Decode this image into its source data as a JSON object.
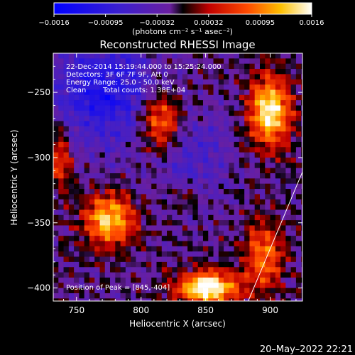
{
  "chart_data": {
    "type": "heatmap",
    "title": "Reconstructed RHESSI Image",
    "xlabel": "Heliocentric X (arcsec)",
    "ylabel": "Heliocentric Y (arcsec)",
    "xlim": [
      732,
      925
    ],
    "ylim": [
      -410,
      -220
    ],
    "x_ticks": [
      750,
      800,
      850,
      900
    ],
    "x_tick_labels": [
      "750",
      "800",
      "850",
      "900"
    ],
    "y_ticks": [
      -250,
      -300,
      -350,
      -400
    ],
    "y_tick_labels": [
      "−250",
      "−300",
      "−350",
      "−400"
    ],
    "colorbar": {
      "range": [
        -0.0016,
        0.0016
      ],
      "tick_labels": [
        "−0.0016",
        "−0.00095",
        "−0.00032",
        "0.00032",
        "0.00095",
        "0.0016"
      ],
      "units": "(photons cm⁻² s⁻¹ asec⁻²)"
    },
    "annotations": [
      "22-Dec-2014 15:19:44.000 to 15:25:24.000",
      "Detectors: 3F 6F 7F 9F, Att 0",
      "Energy Range: 25.0 - 50.0 keV",
      "Clean",
      "Total counts: 1.38E+04"
    ],
    "peak_label": "Position of Peak = [845,-404]",
    "peak": [
      845,
      -404
    ],
    "limb_line": [
      [
        883,
        -410
      ],
      [
        925,
        -311
      ]
    ],
    "sources": [
      {
        "x": 815,
        "y": -272,
        "sx": 11,
        "sy": 16,
        "amp": 1.0
      },
      {
        "x": 900,
        "y": -265,
        "sx": 11,
        "sy": 19,
        "amp": 1.4
      },
      {
        "x": 775,
        "y": -348,
        "sx": 14,
        "sy": 14,
        "amp": 1.2
      },
      {
        "x": 852,
        "y": -400,
        "sx": 16,
        "sy": 9,
        "amp": 1.6
      },
      {
        "x": 895,
        "y": -375,
        "sx": 10,
        "sy": 18,
        "amp": 0.9
      },
      {
        "x": 738,
        "y": -300,
        "sx": 6,
        "sy": 18,
        "amp": 0.7
      },
      {
        "x": 833,
        "y": -328,
        "sx": 8,
        "sy": 8,
        "amp": 0.35
      }
    ],
    "negative_regions": [
      {
        "x": 770,
        "y": -250,
        "sx": 28,
        "sy": 28,
        "amp": -0.85
      },
      {
        "x": 840,
        "y": -300,
        "sx": 20,
        "sy": 25,
        "amp": -0.4
      }
    ]
  },
  "footer": {
    "timestamp": "20–May–2022 22:21"
  }
}
